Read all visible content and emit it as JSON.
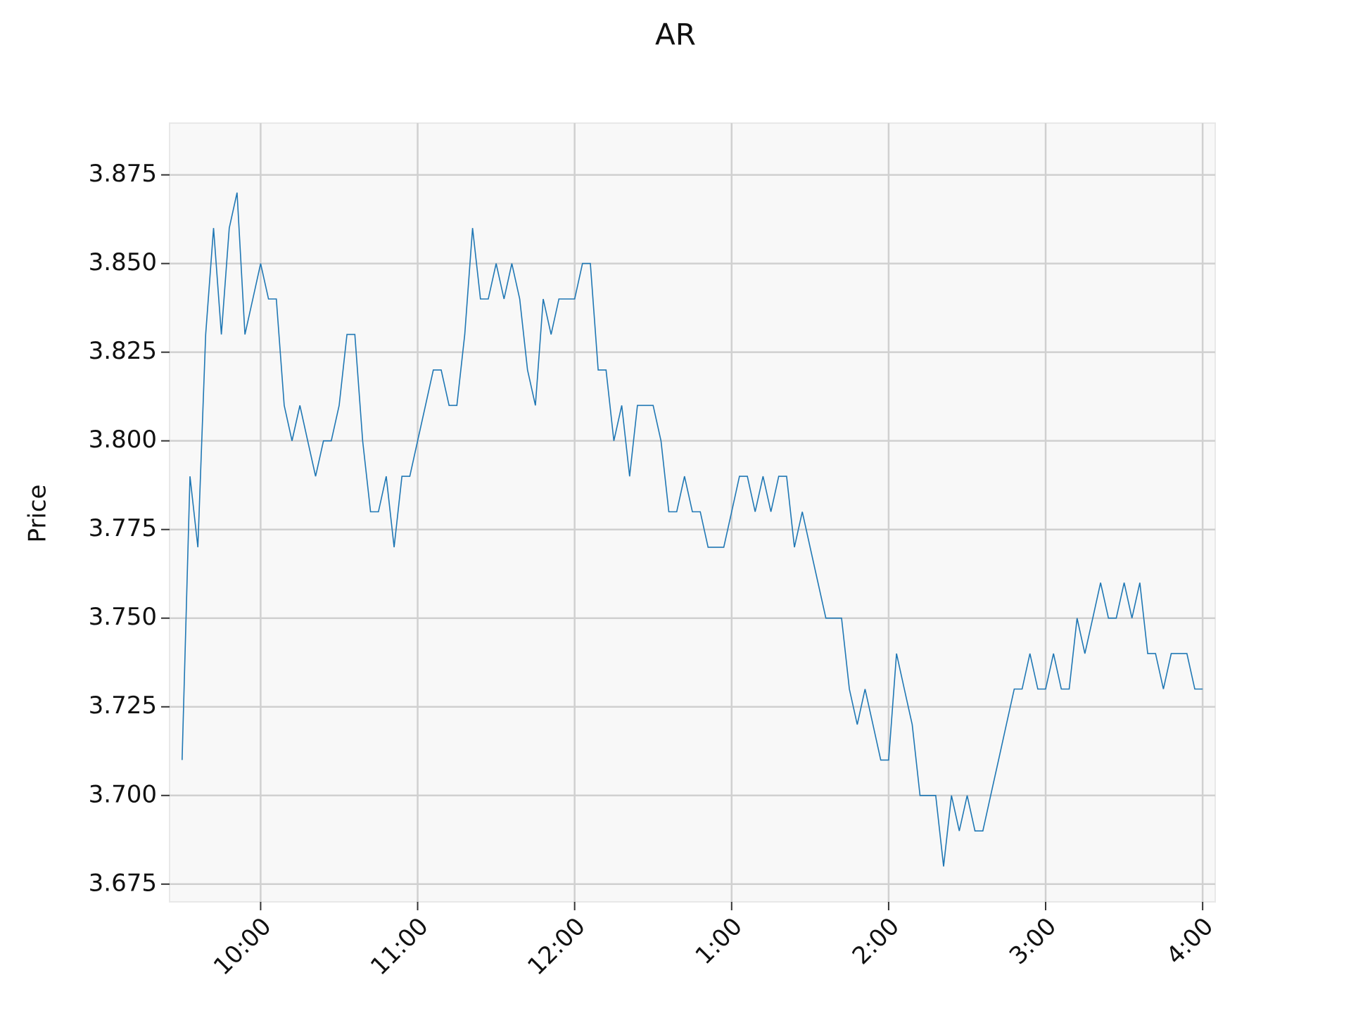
{
  "chart_data": {
    "type": "line",
    "title": "AR",
    "y_label": "Price",
    "color": "#1f77b4",
    "grid": true,
    "x": [
      9.5,
      9.55,
      9.6,
      9.65,
      9.7,
      9.75,
      9.8,
      9.85,
      9.9,
      9.95,
      10,
      10.05,
      10.1,
      10.15,
      10.2,
      10.25,
      10.3,
      10.35,
      10.4,
      10.45,
      10.5,
      10.55,
      10.6,
      10.65,
      10.7,
      10.75,
      10.8,
      10.85,
      10.9,
      10.95,
      11,
      11.05,
      11.1,
      11.15,
      11.2,
      11.25,
      11.3,
      11.35,
      11.4,
      11.45,
      11.5,
      11.55,
      11.6,
      11.65,
      11.7,
      11.75,
      11.8,
      11.85,
      11.9,
      11.95,
      12,
      12.05,
      12.1,
      12.15,
      12.2,
      12.25,
      12.3,
      12.35,
      12.4,
      12.45,
      12.5,
      12.55,
      12.6,
      12.65,
      12.7,
      12.75,
      12.8,
      12.85,
      12.9,
      12.95,
      13,
      13.05,
      13.1,
      13.15,
      13.2,
      13.25,
      13.3,
      13.35,
      13.4,
      13.45,
      13.5,
      13.55,
      13.6,
      13.65,
      13.7,
      13.75,
      13.8,
      13.85,
      13.9,
      13.95,
      14,
      14.05,
      14.1,
      14.15,
      14.2,
      14.25,
      14.3,
      14.35,
      14.4,
      14.45,
      14.5,
      14.55,
      14.6,
      14.65,
      14.7,
      14.75,
      14.8,
      14.85,
      14.9,
      14.95,
      15,
      15.05,
      15.1,
      15.15,
      15.2,
      15.25,
      15.3,
      15.35,
      15.4,
      15.45,
      15.5,
      15.55,
      15.6,
      15.65,
      15.7,
      15.75,
      15.8,
      15.85,
      15.9,
      15.95,
      16
    ],
    "values": [
      3.71,
      3.79,
      3.77,
      3.83,
      3.86,
      3.83,
      3.86,
      3.87,
      3.83,
      3.84,
      3.85,
      3.84,
      3.84,
      3.81,
      3.8,
      3.81,
      3.8,
      3.79,
      3.8,
      3.8,
      3.81,
      3.83,
      3.83,
      3.8,
      3.78,
      3.78,
      3.79,
      3.77,
      3.79,
      3.79,
      3.8,
      3.81,
      3.82,
      3.82,
      3.81,
      3.81,
      3.83,
      3.86,
      3.84,
      3.84,
      3.85,
      3.84,
      3.85,
      3.84,
      3.82,
      3.81,
      3.84,
      3.83,
      3.84,
      3.84,
      3.84,
      3.85,
      3.85,
      3.82,
      3.82,
      3.8,
      3.81,
      3.79,
      3.81,
      3.81,
      3.81,
      3.8,
      3.78,
      3.78,
      3.79,
      3.78,
      3.78,
      3.77,
      3.77,
      3.77,
      3.78,
      3.79,
      3.79,
      3.78,
      3.79,
      3.78,
      3.79,
      3.79,
      3.77,
      3.78,
      3.77,
      3.76,
      3.75,
      3.75,
      3.75,
      3.73,
      3.72,
      3.73,
      3.72,
      3.71,
      3.71,
      3.74,
      3.73,
      3.72,
      3.7,
      3.7,
      3.7,
      3.68,
      3.7,
      3.69,
      3.7,
      3.69,
      3.69,
      3.7,
      3.71,
      3.72,
      3.73,
      3.73,
      3.74,
      3.73,
      3.73,
      3.74,
      3.73,
      3.73,
      3.75,
      3.74,
      3.75,
      3.76,
      3.75,
      3.75,
      3.76,
      3.75,
      3.76,
      3.74,
      3.74,
      3.73,
      3.74,
      3.74,
      3.74,
      3.73,
      3.73
    ],
    "xlim": [
      9.42,
      16.08
    ],
    "xticks": [
      {
        "value": 10,
        "label": "10:00"
      },
      {
        "value": 11,
        "label": "11:00"
      },
      {
        "value": 12,
        "label": "12:00"
      },
      {
        "value": 13,
        "label": "1:00"
      },
      {
        "value": 14,
        "label": "2:00"
      },
      {
        "value": 15,
        "label": "3:00"
      },
      {
        "value": 16,
        "label": "4:00"
      }
    ],
    "ylim": [
      3.67,
      3.8896
    ],
    "yticks": [
      3.675,
      {
        "value": 3.7,
        "label": "3.700"
      },
      3.725,
      {
        "value": 3.75,
        "label": "3.750"
      },
      3.775,
      {
        "value": 3.8,
        "label": "3.800"
      },
      3.825,
      {
        "value": 3.85,
        "label": "3.850"
      },
      3.875
    ]
  }
}
